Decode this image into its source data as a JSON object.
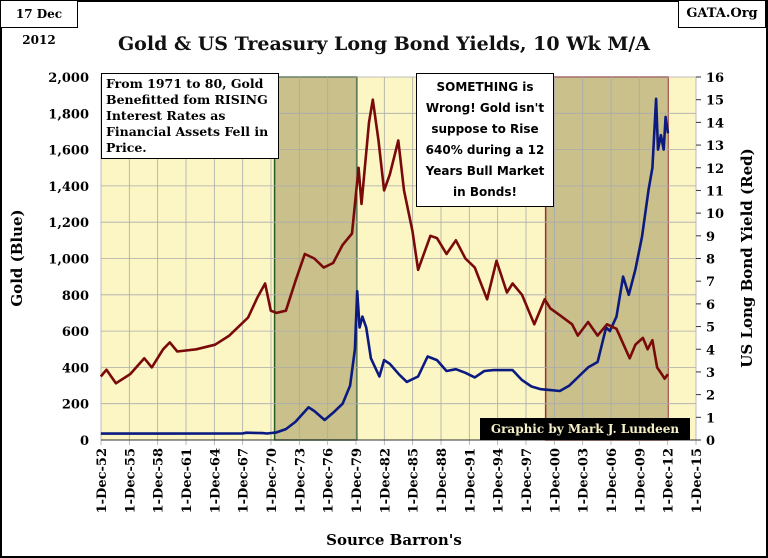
{
  "date_label": "17 Dec 2012",
  "source_label": "GATA.Org",
  "credit": "Graphic by Mark J. Lundeen",
  "annotations": {
    "left": "From 1971 to 80, Gold Benefitted fom RISING Interest Rates as Financial Assets  Fell in Price.",
    "right": "SOMETHING is Wrong!  Gold isn't suppose to Rise 640% during a 12 Years Bull Market in Bonds!"
  },
  "colors": {
    "gold": "#0a1a80",
    "yield": "#7a0a0a",
    "plot_bg": "#fbf6c4",
    "shade": "#c9c08c",
    "shade_border_2000": "#9b3030"
  },
  "chart_data": {
    "type": "line",
    "title": "Gold & US Treasury Long Bond Yields, 10 Wk M/A",
    "xlabel": "Source Barron's",
    "ylabel_left": "Gold (Blue)",
    "ylabel_right": "US Long Bond Yield (Red)",
    "xlim": [
      1952.92,
      2015.92
    ],
    "ylim_left": [
      0,
      2000
    ],
    "ylim_right": [
      0,
      16
    ],
    "x_ticks": [
      "1-Dec-52",
      "1-Dec-55",
      "1-Dec-58",
      "1-Dec-61",
      "1-Dec-64",
      "1-Dec-67",
      "1-Dec-70",
      "1-Dec-73",
      "1-Dec-76",
      "1-Dec-79",
      "1-Dec-82",
      "1-Dec-85",
      "1-Dec-88",
      "1-Dec-91",
      "1-Dec-94",
      "1-Dec-97",
      "1-Dec-00",
      "1-Dec-03",
      "1-Dec-06",
      "1-Dec-09",
      "1-Dec-12",
      "1-Dec-15"
    ],
    "y_ticks_left": [
      "0",
      "200",
      "400",
      "600",
      "800",
      "1,000",
      "1,200",
      "1,400",
      "1,600",
      "1,800",
      "2,000"
    ],
    "y_ticks_right": [
      "0",
      "1",
      "2",
      "3",
      "4",
      "5",
      "6",
      "7",
      "8",
      "9",
      "10",
      "11",
      "12",
      "13",
      "14",
      "15",
      "16"
    ],
    "grid": true,
    "shaded_periods": [
      [
        1971.3,
        1980.0
      ],
      [
        2000.0,
        2012.96
      ]
    ],
    "series": [
      {
        "name": "Gold (Blue)",
        "axis": "left",
        "x": [
          1952.9,
          1960,
          1967.9,
          1968.3,
          1970,
          1970.5,
          1971.5,
          1972.5,
          1973.5,
          1974.9,
          1975.5,
          1976.6,
          1977.5,
          1978.5,
          1979.3,
          1979.8,
          1980.05,
          1980.3,
          1980.6,
          1981,
          1981.5,
          1982.4,
          1982.9,
          1983.5,
          1984.5,
          1985.3,
          1986.5,
          1987.5,
          1988.5,
          1989.5,
          1990.5,
          1991.5,
          1992.5,
          1993.5,
          1994.5,
          1995.5,
          1996.5,
          1997.5,
          1998.5,
          1999.5,
          2000.5,
          2001.5,
          2002.5,
          2003.5,
          2004.5,
          2005.5,
          2006.4,
          2006.8,
          2007.5,
          2008.2,
          2008.8,
          2009.5,
          2010.2,
          2010.9,
          2011.3,
          2011.7,
          2011.9,
          2012.2,
          2012.5,
          2012.7,
          2012.96
        ],
        "values": [
          35,
          35,
          36,
          40,
          38,
          36,
          42,
          60,
          100,
          180,
          160,
          110,
          150,
          200,
          300,
          500,
          820,
          620,
          680,
          620,
          450,
          350,
          440,
          420,
          360,
          320,
          350,
          460,
          440,
          380,
          390,
          370,
          345,
          380,
          385,
          385,
          385,
          330,
          295,
          280,
          275,
          270,
          300,
          350,
          400,
          430,
          620,
          600,
          680,
          900,
          800,
          940,
          1120,
          1380,
          1500,
          1880,
          1600,
          1680,
          1600,
          1780,
          1690
        ]
      },
      {
        "name": "US Long Bond Yield (Red)",
        "axis": "right",
        "x": [
          1952.9,
          1953.5,
          1954.5,
          1956,
          1957.5,
          1958.3,
          1959.5,
          1960.2,
          1961,
          1963,
          1965,
          1966.5,
          1967.5,
          1968.5,
          1969.5,
          1970.3,
          1970.9,
          1971.5,
          1972.5,
          1973.5,
          1974.5,
          1975.5,
          1976.5,
          1977.5,
          1978.5,
          1979.5,
          1980.2,
          1980.5,
          1981.3,
          1981.7,
          1982.3,
          1982.9,
          1983.5,
          1984.4,
          1985,
          1985.9,
          1986.5,
          1987.8,
          1988.5,
          1989.5,
          1990.5,
          1991.5,
          1992.5,
          1993.8,
          1994.8,
          1995.9,
          1996.5,
          1997.5,
          1998.8,
          1999.9,
          2000.5,
          2001.5,
          2002.8,
          2003.4,
          2004.5,
          2005.5,
          2006.5,
          2007.5,
          2008.9,
          2009.5,
          2010.3,
          2010.8,
          2011.3,
          2011.8,
          2012.3,
          2012.6,
          2012.96
        ],
        "values": [
          2.8,
          3.1,
          2.5,
          2.9,
          3.6,
          3.2,
          4.0,
          4.3,
          3.9,
          4.0,
          4.2,
          4.6,
          5.0,
          5.4,
          6.3,
          6.9,
          5.7,
          5.6,
          5.7,
          7.0,
          8.2,
          8.0,
          7.6,
          7.8,
          8.6,
          9.1,
          12.0,
          10.4,
          14.0,
          15.0,
          13.2,
          11.0,
          11.7,
          13.2,
          11.0,
          9.2,
          7.5,
          9.0,
          8.9,
          8.2,
          8.8,
          8.0,
          7.6,
          6.2,
          7.9,
          6.5,
          6.9,
          6.4,
          5.1,
          6.2,
          5.8,
          5.5,
          5.1,
          4.6,
          5.2,
          4.6,
          5.1,
          4.9,
          3.6,
          4.2,
          4.5,
          4.0,
          4.4,
          3.2,
          2.9,
          2.7,
          2.9
        ]
      }
    ]
  }
}
